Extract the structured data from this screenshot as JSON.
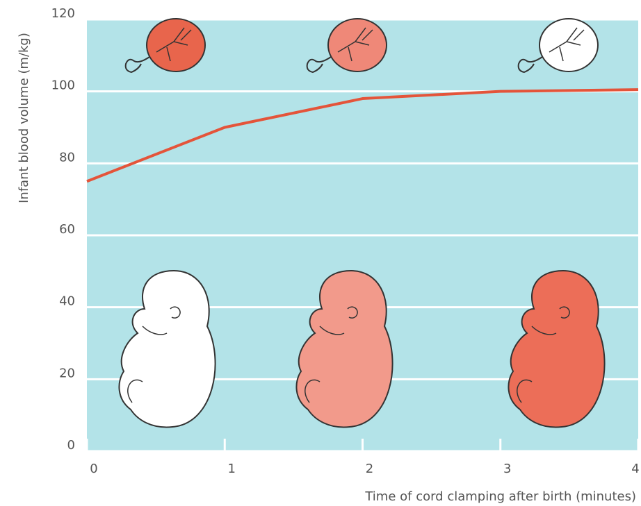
{
  "chart_data": {
    "type": "line",
    "x_label": "Time of cord clamping after birth (minutes)",
    "y_label": "Infant blood volume (m/kg)",
    "x": [
      0,
      1,
      2,
      3,
      4
    ],
    "series": [
      {
        "color": "#e4543a",
        "values": [
          75,
          90,
          98,
          100,
          100.5
        ]
      }
    ],
    "xlim": [
      0,
      4
    ],
    "ylim": [
      0,
      120
    ],
    "xticks": [
      0,
      1,
      2,
      3,
      4
    ],
    "yticks": [
      0,
      20,
      40,
      60,
      80,
      100,
      120
    ],
    "grid": true,
    "background": "#b3e3e8"
  }
}
